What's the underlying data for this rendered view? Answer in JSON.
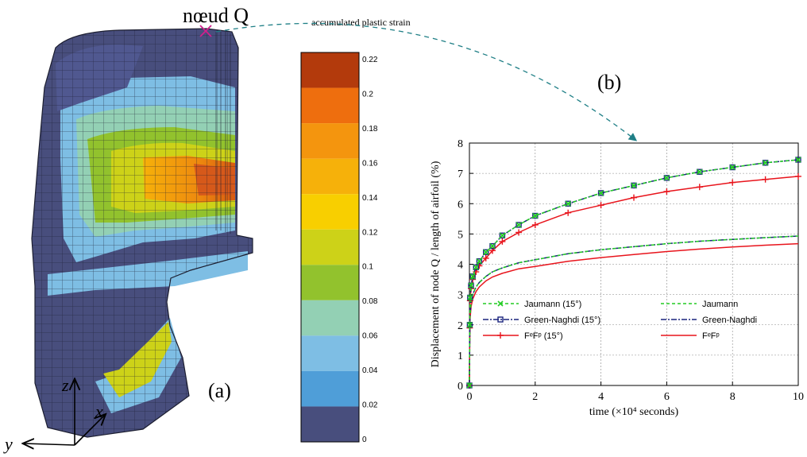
{
  "left_panel": {
    "node_label": "nœud Q",
    "colorbar_title": "accumulated plastic strain",
    "panel_label": "(a)",
    "axes": {
      "z": "z",
      "x": "x",
      "y": "y"
    },
    "colorbar_ticks": [
      "0.22",
      "0.2",
      "0.18",
      "0.16",
      "0.14",
      "0.12",
      "0.1",
      "0.08",
      "0.06",
      "0.04",
      "0.02",
      "0"
    ],
    "colorbar_colors": [
      "#b33a0c",
      "#ee6e0e",
      "#f4950e",
      "#f6b10a",
      "#f8cf00",
      "#cdd218",
      "#92c22d",
      "#93d0b4",
      "#7ebee4",
      "#4f9ed8",
      "#484e7d"
    ]
  },
  "chart_data": {
    "type": "line",
    "panel_label": "(b)",
    "xlabel": "time (×10⁴ seconds)",
    "ylabel": "Displacement of node Q / length of airfoil (%)",
    "xlim": [
      0,
      10
    ],
    "ylim": [
      0,
      8
    ],
    "xticks": [
      "0",
      "2",
      "4",
      "6",
      "8",
      "10"
    ],
    "yticks": [
      "0",
      "1",
      "2",
      "3",
      "4",
      "5",
      "6",
      "7",
      "8"
    ],
    "grid": true,
    "legend_placement": "lower-center",
    "x": [
      0,
      0.01,
      0.02,
      0.05,
      0.1,
      0.2,
      0.3,
      0.5,
      0.7,
      1.0,
      1.5,
      2.0,
      3.0,
      4.0,
      5.0,
      6.0,
      7.0,
      8.0,
      9.0,
      10.0
    ],
    "series": [
      {
        "name": "Jaumann (15°)",
        "color": "#22cc22",
        "dash": "4,3",
        "marker": "x",
        "values": [
          0,
          2.0,
          2.9,
          3.3,
          3.6,
          3.9,
          4.1,
          4.4,
          4.6,
          4.95,
          5.3,
          5.6,
          6.0,
          6.35,
          6.6,
          6.85,
          7.05,
          7.2,
          7.35,
          7.45
        ]
      },
      {
        "name": "Green-Naghdi (15°)",
        "color": "#1a237e",
        "dash": "7,2,2,2",
        "marker": "square",
        "values": [
          0,
          2.0,
          2.9,
          3.3,
          3.6,
          3.9,
          4.1,
          4.4,
          4.6,
          4.95,
          5.3,
          5.6,
          6.0,
          6.35,
          6.6,
          6.85,
          7.05,
          7.2,
          7.35,
          7.45
        ]
      },
      {
        "name": "FᵉFᵖ (15°)",
        "color": "#e8141c",
        "dash": "",
        "marker": "plus",
        "values": [
          0,
          1.9,
          2.8,
          3.2,
          3.5,
          3.75,
          3.95,
          4.2,
          4.45,
          4.75,
          5.05,
          5.3,
          5.7,
          5.95,
          6.2,
          6.4,
          6.55,
          6.7,
          6.8,
          6.9
        ]
      },
      {
        "name": "Jaumann",
        "color": "#22cc22",
        "dash": "4,3",
        "marker": "none",
        "values": [
          0,
          1.6,
          2.3,
          2.75,
          3.0,
          3.25,
          3.4,
          3.6,
          3.75,
          3.88,
          4.05,
          4.15,
          4.35,
          4.48,
          4.58,
          4.68,
          4.76,
          4.82,
          4.88,
          4.93
        ]
      },
      {
        "name": "Green-Naghdi",
        "color": "#1a237e",
        "dash": "7,2,2,2",
        "marker": "none",
        "values": [
          0,
          1.6,
          2.3,
          2.75,
          3.0,
          3.25,
          3.4,
          3.6,
          3.75,
          3.88,
          4.05,
          4.15,
          4.35,
          4.48,
          4.58,
          4.68,
          4.76,
          4.82,
          4.88,
          4.93
        ]
      },
      {
        "name": "FᵉFᵖ",
        "color": "#e8141c",
        "dash": "",
        "marker": "none",
        "values": [
          0,
          1.5,
          2.2,
          2.6,
          2.85,
          3.1,
          3.25,
          3.45,
          3.58,
          3.7,
          3.85,
          3.93,
          4.1,
          4.22,
          4.32,
          4.42,
          4.5,
          4.57,
          4.63,
          4.68
        ]
      }
    ]
  }
}
